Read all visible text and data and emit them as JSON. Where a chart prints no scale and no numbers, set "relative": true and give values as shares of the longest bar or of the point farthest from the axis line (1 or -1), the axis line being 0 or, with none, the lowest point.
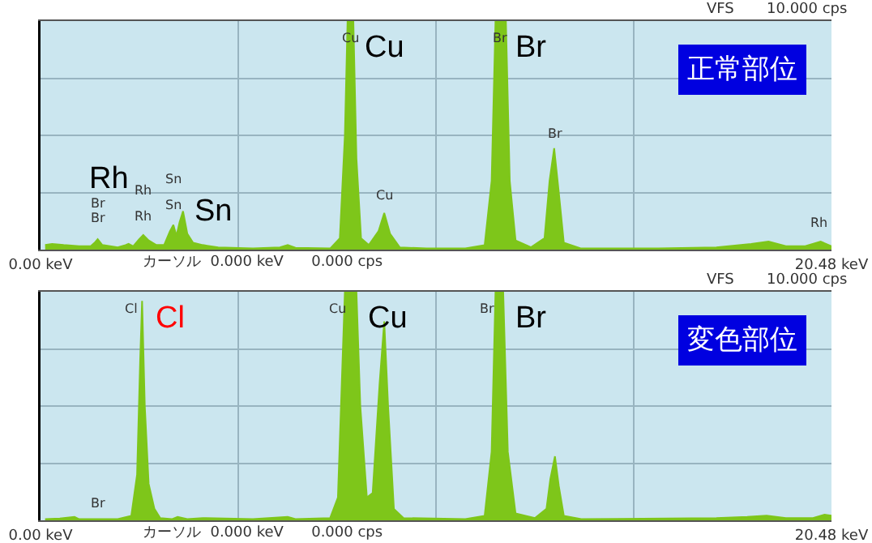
{
  "chart_data": [
    {
      "type": "area",
      "subtitle": "正常部位",
      "relative": true,
      "grid": true,
      "xlim": [
        0,
        20.48
      ],
      "xticks": [
        {
          "value": 0,
          "label": "0.00 keV"
        },
        {
          "value": 5.12,
          "label": null
        },
        {
          "value": 10.24,
          "label": null
        },
        {
          "value": 15.36,
          "label": null
        },
        {
          "value": 20.48,
          "label": "20.48 keV"
        }
      ],
      "x": [
        0.12,
        0.3,
        0.6,
        1.0,
        1.3,
        1.4,
        1.48,
        1.6,
        2.0,
        2.2,
        2.28,
        2.4,
        2.55,
        2.66,
        2.8,
        3.0,
        3.2,
        3.35,
        3.44,
        3.52,
        3.6,
        3.69,
        3.8,
        3.95,
        4.2,
        4.6,
        5.5,
        6.2,
        6.4,
        6.6,
        7.5,
        7.75,
        7.88,
        7.95,
        8.1,
        8.18,
        8.3,
        8.5,
        8.75,
        8.9,
        9.05,
        9.3,
        10.0,
        11.0,
        11.5,
        11.68,
        11.78,
        12.05,
        12.15,
        12.3,
        12.7,
        13.05,
        13.18,
        13.3,
        13.42,
        13.55,
        14,
        16,
        17.5,
        18.4,
        18.85,
        19.3,
        19.8,
        20.2,
        20.48
      ],
      "series": [
        {
          "color": "#7ec61a",
          "values": [
            0.02,
            0.025,
            0.02,
            0.015,
            0.015,
            0.03,
            0.046,
            0.02,
            0.01,
            0.02,
            0.025,
            0.015,
            0.045,
            0.064,
            0.04,
            0.02,
            0.02,
            0.08,
            0.108,
            0.06,
            0.12,
            0.168,
            0.07,
            0.03,
            0.02,
            0.01,
            0.005,
            0.01,
            0.02,
            0.008,
            0.005,
            0.05,
            0.5,
            1,
            1,
            0.4,
            0.05,
            0.02,
            0.08,
            0.16,
            0.07,
            0.01,
            0.005,
            0.005,
            0.02,
            0.3,
            1,
            1,
            0.3,
            0.04,
            0.01,
            0.05,
            0.3,
            0.444,
            0.25,
            0.03,
            0.005,
            0.005,
            0.01,
            0.025,
            0.035,
            0.015,
            0.015,
            0.035,
            0.015
          ]
        }
      ],
      "annotations": [
        "VFS",
        "10.000 cps",
        "カーソル  0.000 keV      0.000 cps",
        "Br",
        "Br",
        "Rh",
        "Rh",
        "Sn",
        "Sn",
        "Cu",
        "Cu",
        "Br",
        "Br",
        "Rh",
        "Rh",
        "Sn",
        "Cu",
        "Br"
      ]
    },
    {
      "type": "area",
      "subtitle": "変色部位",
      "relative": true,
      "grid": true,
      "xlim": [
        0,
        20.48
      ],
      "xticks": [
        {
          "value": 0,
          "label": "0.00 keV"
        },
        {
          "value": 5.12,
          "label": null
        },
        {
          "value": 10.24,
          "label": null
        },
        {
          "value": 15.36,
          "label": null
        },
        {
          "value": 20.48,
          "label": "20.48 keV"
        }
      ],
      "x": [
        0.12,
        0.5,
        0.88,
        1.0,
        2.0,
        2.35,
        2.5,
        2.58,
        2.63,
        2.7,
        2.8,
        2.95,
        3.1,
        3.4,
        3.55,
        3.8,
        4.2,
        5.5,
        6.4,
        6.6,
        7.5,
        7.7,
        7.8,
        7.88,
        8.18,
        8.28,
        8.45,
        8.6,
        8.78,
        8.9,
        9.0,
        9.15,
        9.4,
        11.0,
        11.5,
        11.68,
        11.78,
        11.98,
        12.1,
        12.3,
        12.8,
        13.1,
        13.2,
        13.32,
        13.42,
        13.55,
        14,
        17.5,
        18.3,
        18.8,
        19.3,
        20.0,
        20.3,
        20.48
      ],
      "series": [
        {
          "color": "#7ec61a",
          "values": [
            0.005,
            0.008,
            0.015,
            0.005,
            0.005,
            0.02,
            0.2,
            0.7,
            0.96,
            0.5,
            0.16,
            0.05,
            0.01,
            0.005,
            0.015,
            0.005,
            0.01,
            0.005,
            0.015,
            0.005,
            0.01,
            0.1,
            0.6,
            1,
            1,
            0.5,
            0.1,
            0.12,
            0.6,
            0.87,
            0.5,
            0.05,
            0.01,
            0.005,
            0.02,
            0.3,
            1,
            1,
            0.3,
            0.03,
            0.01,
            0.05,
            0.18,
            0.28,
            0.15,
            0.02,
            0.005,
            0.01,
            0.015,
            0.02,
            0.01,
            0.01,
            0.025,
            0.02
          ]
        }
      ],
      "annotations": [
        "VFS",
        "10.000 cps",
        "カーソル  0.000 keV      0.000 cps",
        "Br",
        "Cl",
        "Cu",
        "Br",
        "Cl",
        "Cu",
        "Br"
      ]
    }
  ]
}
